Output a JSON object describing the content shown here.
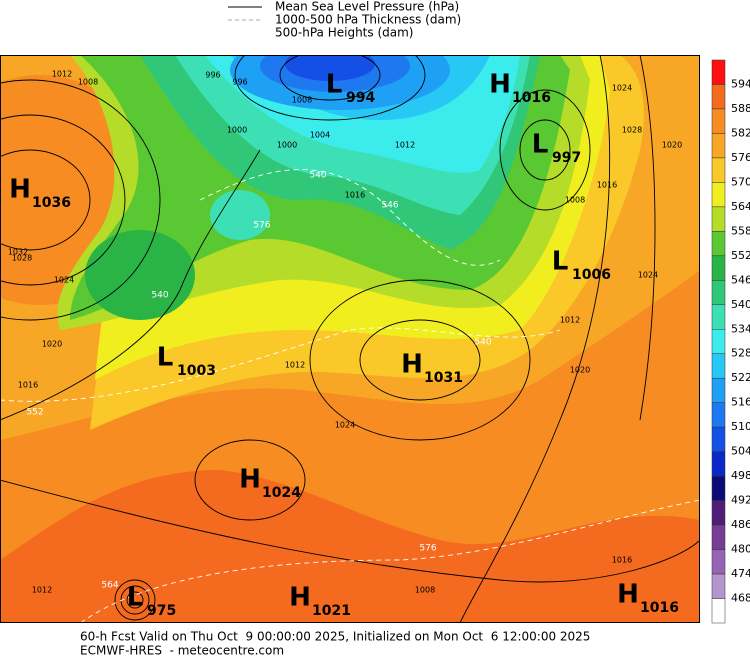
{
  "legend": {
    "items": [
      "Mean Sea Level Pressure (hPa)",
      "1000-500 hPa Thickness (dam)",
      "500-hPa Heights (dam)"
    ]
  },
  "centers": [
    {
      "type": "H",
      "value": "1036"
    },
    {
      "type": "L",
      "value": "994"
    },
    {
      "type": "H",
      "value": "1016"
    },
    {
      "type": "L",
      "value": "997"
    },
    {
      "type": "L",
      "value": "1006"
    },
    {
      "type": "L",
      "value": "1003"
    },
    {
      "type": "H",
      "value": "1031"
    },
    {
      "type": "H",
      "value": "1024"
    },
    {
      "type": "L",
      "value": "975"
    },
    {
      "type": "H",
      "value": "1021"
    },
    {
      "type": "H",
      "value": "1016"
    }
  ],
  "isobar_labels": [
    "1012",
    "1008",
    "996",
    "996",
    "1000",
    "1000",
    "1008",
    "1012",
    "1024",
    "1028",
    "1020",
    "1016",
    "1008",
    "1032",
    "1028",
    "1024",
    "1020",
    "1016",
    "1016",
    "1024",
    "1020",
    "1012",
    "1012",
    "1024",
    "1016",
    "1012",
    "1008",
    "1004"
  ],
  "thickness_labels": [
    "540",
    "540",
    "546",
    "552",
    "564",
    "576",
    "576",
    "540"
  ],
  "colorbar": {
    "levels": [
      594,
      588,
      582,
      576,
      570,
      564,
      558,
      552,
      546,
      540,
      534,
      528,
      522,
      516,
      510,
      504,
      498,
      492,
      486,
      480,
      474,
      468
    ],
    "colors": [
      "#ff1010",
      "#f46a1e",
      "#f68c22",
      "#f8a626",
      "#fac828",
      "#f0ee1e",
      "#b4dc28",
      "#5ac832",
      "#2ab446",
      "#30c878",
      "#3ce0b4",
      "#3cecec",
      "#28c8f5",
      "#1ea0f5",
      "#1e78f0",
      "#1450e6",
      "#0a28c8",
      "#0a0a78",
      "#501e78",
      "#783c96",
      "#9664b4",
      "#b496cc",
      "#ffffff"
    ]
  },
  "footer": {
    "line1": "60-h Fcst Valid on Thu Oct  9 00:00:00 2025, Initialized on Mon Oct  6 12:00:00 2025",
    "line2": "ECMWF-HRES  - meteocentre.com"
  }
}
